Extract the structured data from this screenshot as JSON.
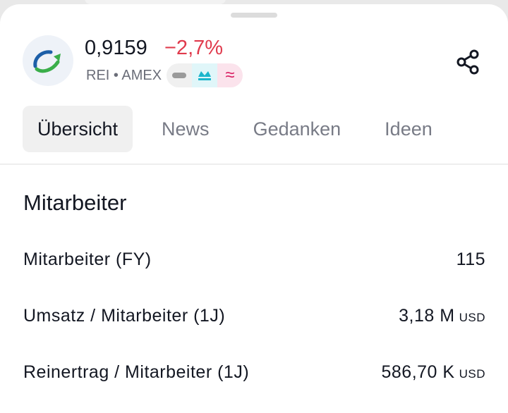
{
  "header": {
    "price": "0,9159",
    "change": "−2,7%",
    "ticker": "REI",
    "separator": "•",
    "exchange": "AMEX"
  },
  "tabs": [
    {
      "label": "Übersicht"
    },
    {
      "label": "News"
    },
    {
      "label": "Gedanken"
    },
    {
      "label": "Ideen"
    }
  ],
  "section": {
    "title": "Mitarbeiter",
    "rows": [
      {
        "label": "Mitarbeiter (FY)",
        "value": "115",
        "unit": ""
      },
      {
        "label": "Umsatz / Mitarbeiter (1J)",
        "value": "3,18 M",
        "unit": "USD"
      },
      {
        "label": "Reinertrag / Mitarbeiter (1J)",
        "value": "586,70 K",
        "unit": "USD"
      }
    ]
  }
}
